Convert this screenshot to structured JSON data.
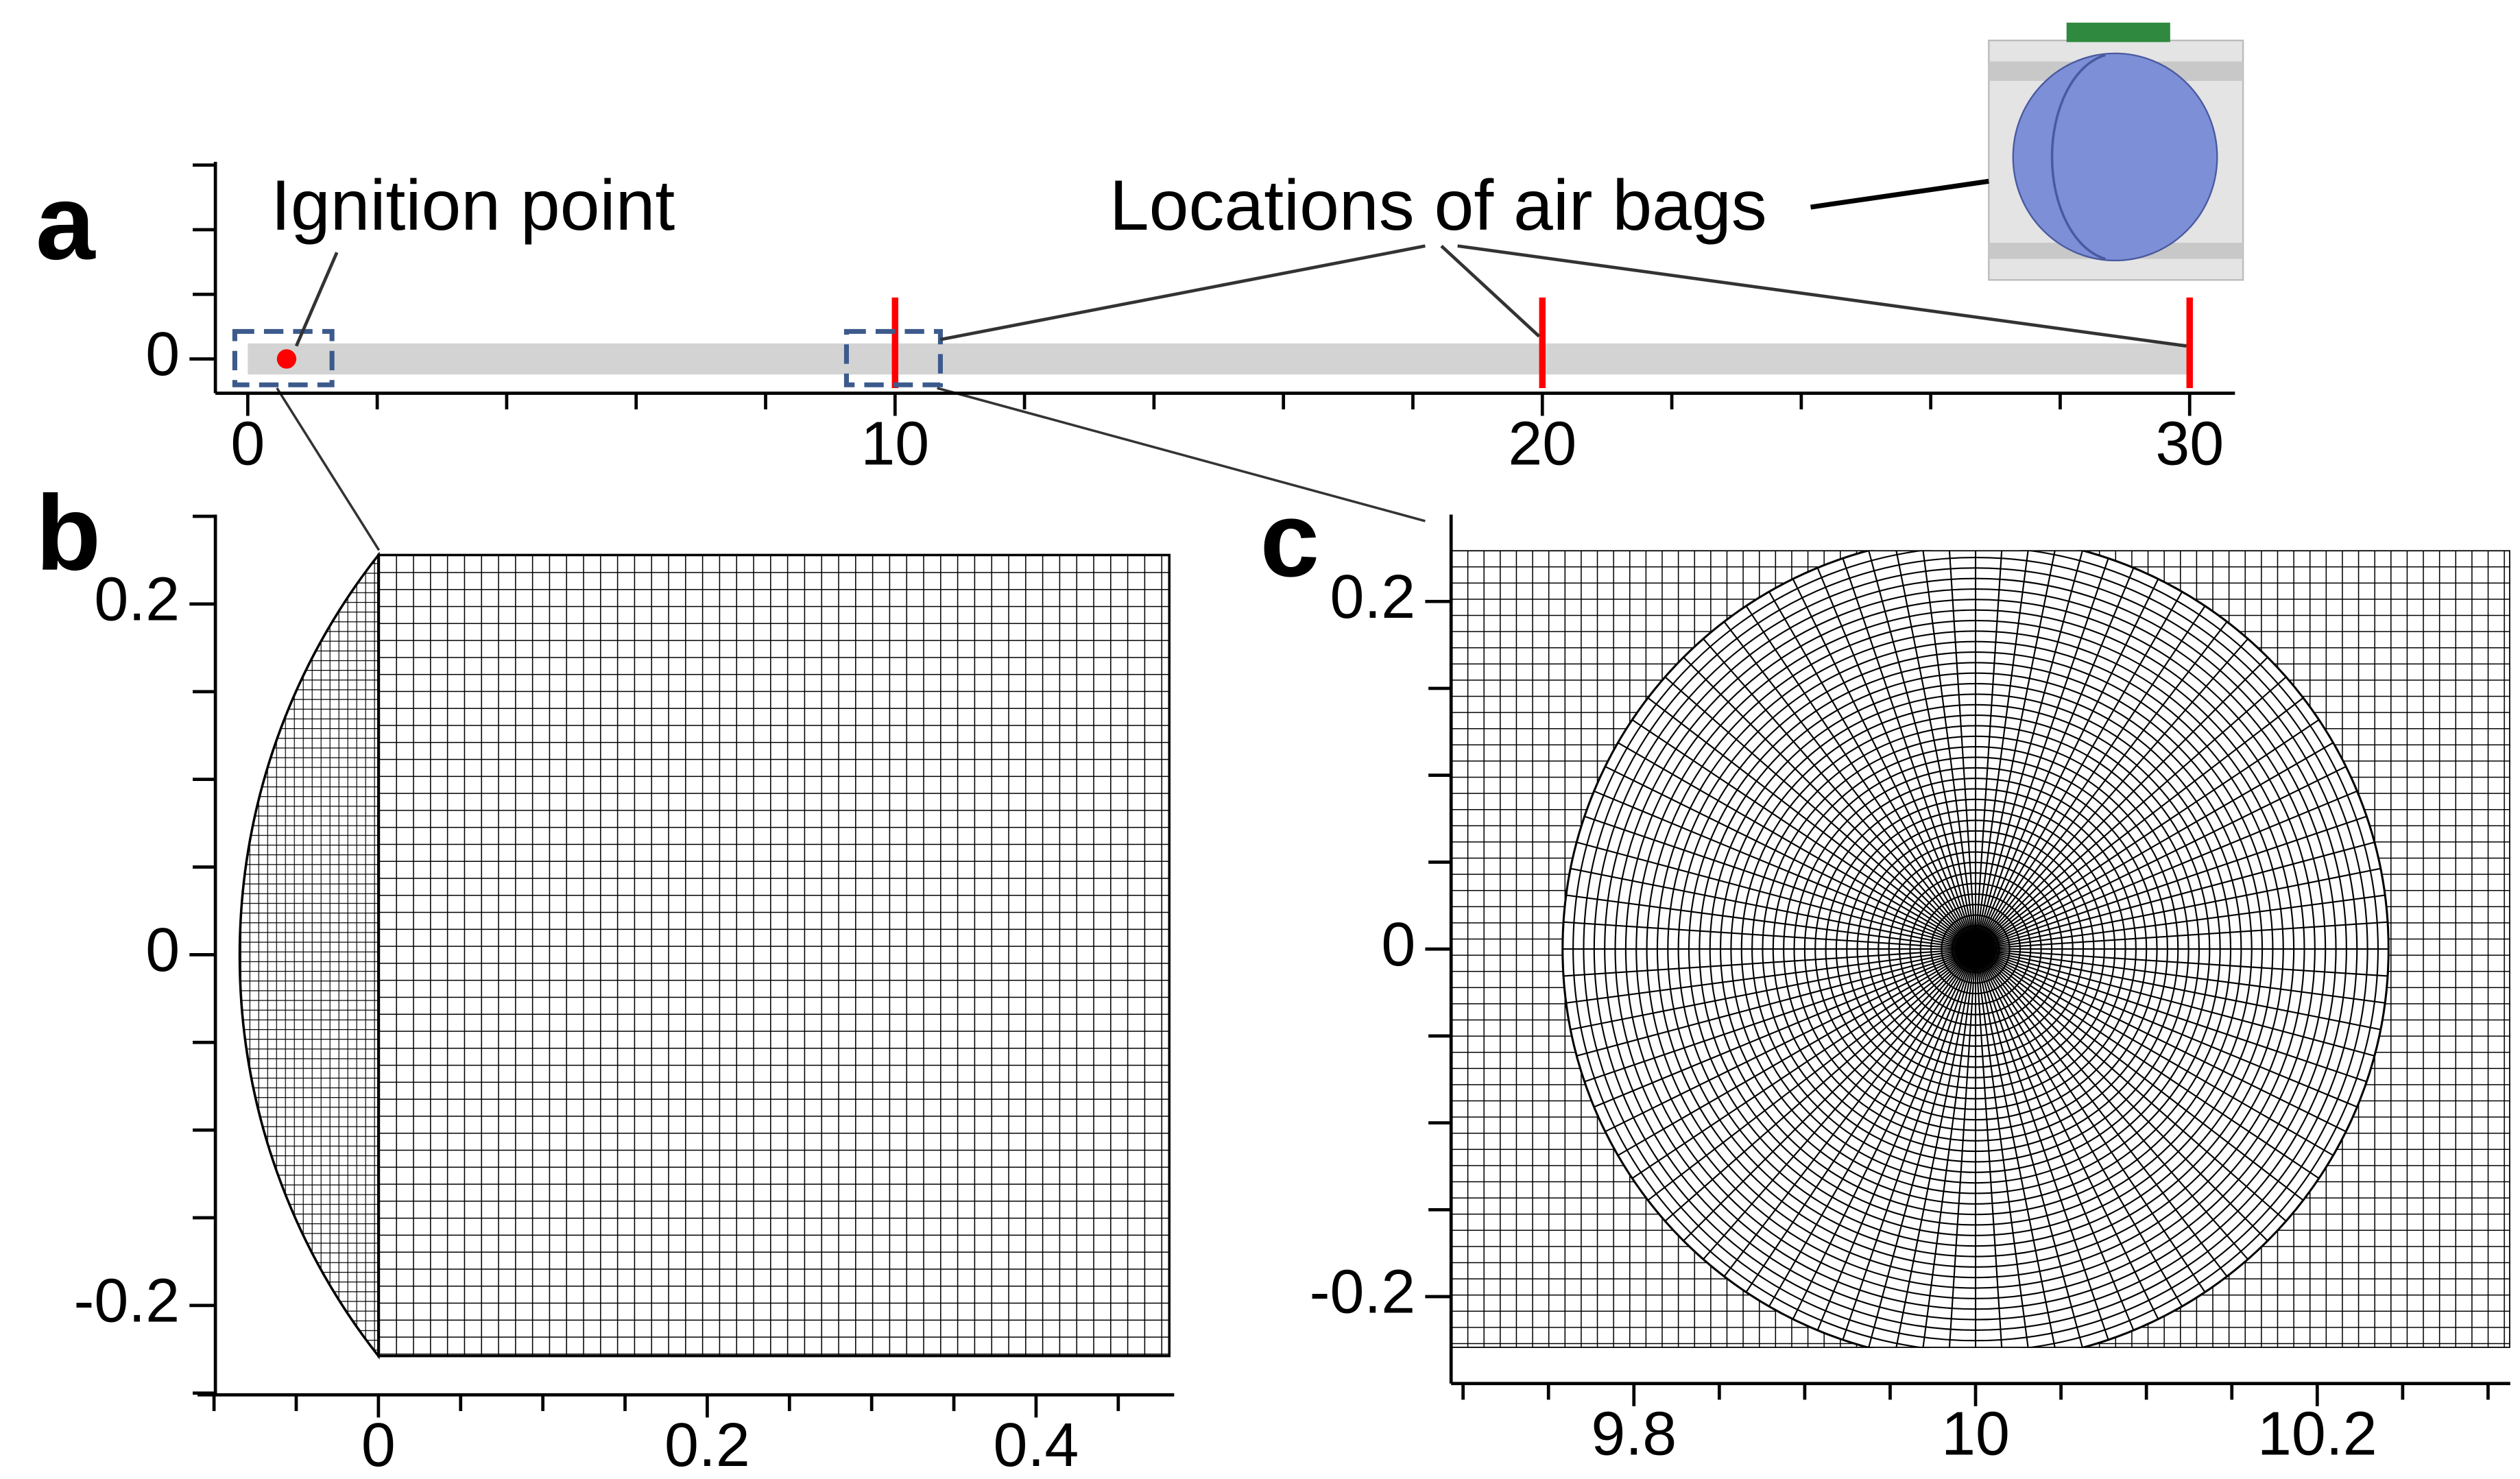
{
  "chart_data": [
    {
      "type": "pipe",
      "panel_label": "a",
      "annotations": [
        "Ignition point",
        "Locations of air bags"
      ],
      "xlim": [
        -0.5,
        30.7
      ],
      "xticks": [
        0,
        10,
        20,
        30
      ],
      "xminor": [
        2,
        4,
        6,
        8,
        12,
        14,
        16,
        18,
        22,
        24,
        26,
        28
      ],
      "ylim": [
        -0.53,
        3.05
      ],
      "yticks": [
        0
      ],
      "yminor": [
        1,
        2,
        3
      ],
      "pipe_radius": 0.24,
      "pipe_length": 30,
      "pipe_color": "#d3d3d3",
      "ignition_point": 0.6,
      "airbags": [
        10,
        20,
        30
      ],
      "marker_color": "#ff0000"
    },
    {
      "type": "mesh",
      "panel_label": "b",
      "xlim": [
        -0.11,
        0.484
      ],
      "xticks": [
        0,
        0.2,
        0.4
      ],
      "xminor": [
        -0.1,
        -0.05,
        0.05,
        0.1,
        0.15,
        0.25,
        0.3,
        0.35,
        0.45
      ],
      "ylim": [
        -0.251,
        0.251
      ],
      "yticks": [
        0.2,
        0,
        -0.2
      ],
      "yminor": [
        0.25,
        0.15,
        0.1,
        0.05,
        -0.05,
        -0.1,
        -0.15,
        -0.25
      ]
    },
    {
      "type": "mesh",
      "panel_label": "c",
      "xlim": [
        9.693,
        10.313
      ],
      "xticks": [
        9.8,
        10,
        10.2
      ],
      "xminor": [
        9.7,
        9.75,
        9.85,
        9.9,
        9.95,
        10.05,
        10.1,
        10.15,
        10.25,
        10.3
      ],
      "ylim": [
        -0.25,
        0.25
      ],
      "yticks": [
        0.2,
        0,
        -0.2
      ],
      "yminor": [
        0.15,
        0.1,
        0.05,
        -0.05,
        -0.1,
        -0.15
      ]
    }
  ]
}
